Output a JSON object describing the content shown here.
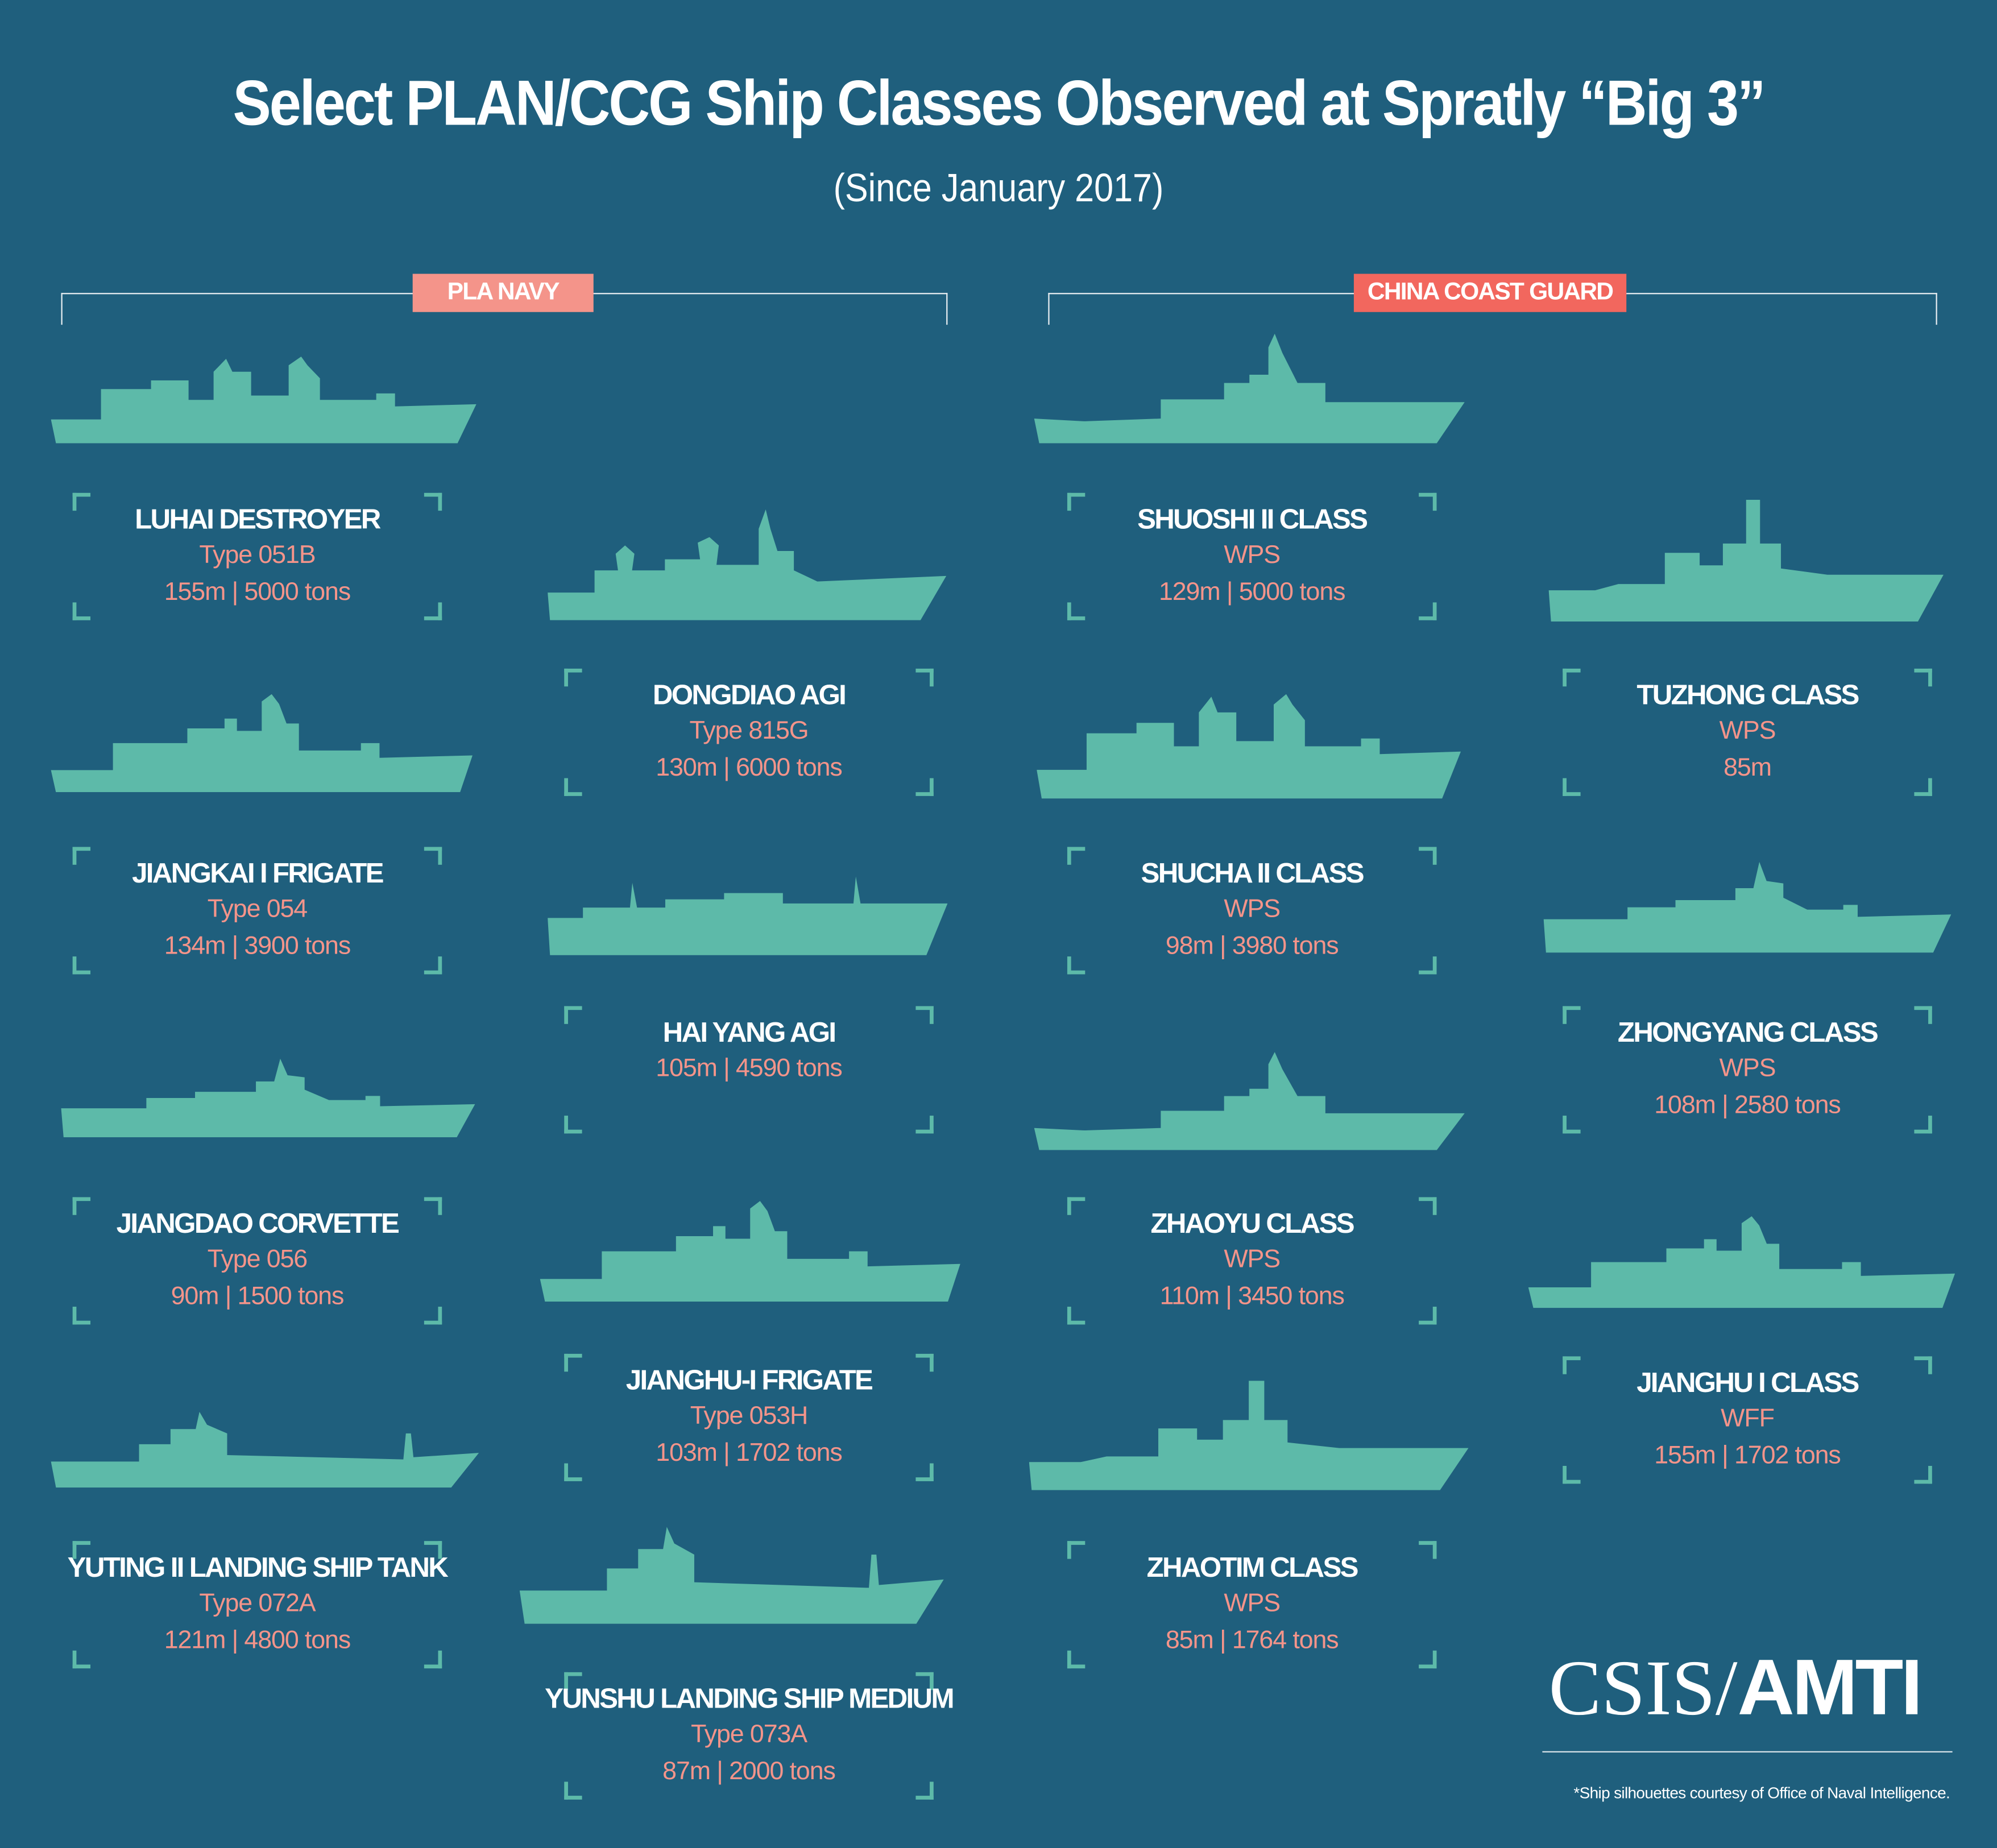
{
  "header": {
    "title": "Select PLAN/CCG Ship Classes Observed at Spratly “Big 3”",
    "subtitle": "(Since January 2017)"
  },
  "colors": {
    "background": "#1f5f7d",
    "ship": "#5dbaa9",
    "pla_badge": "#f4948a",
    "ccg_badge": "#f2675e",
    "detail_text": "#f4948a"
  },
  "groups": {
    "pla": {
      "label": "PLA NAVY"
    },
    "ccg": {
      "label": "CHINA COAST GUARD"
    }
  },
  "ships": [
    {
      "name": "LUHAI DESTROYER",
      "type": "Type 051B",
      "stats": "155m | 5000 tons",
      "icon": "destroyer-silhouette-icon"
    },
    {
      "name": "JIANGKAI I FRIGATE",
      "type": "Type 054",
      "stats": "134m | 3900 tons",
      "icon": "frigate-silhouette-icon"
    },
    {
      "name": "JIANGDAO CORVETTE",
      "type": "Type 056",
      "stats": "90m | 1500 tons",
      "icon": "corvette-silhouette-icon"
    },
    {
      "name": "YUTING II LANDING SHIP TANK",
      "type": "Type 072A",
      "stats": "121m | 4800 tons",
      "icon": "landing-ship-silhouette-icon"
    },
    {
      "name": "DONGDIAO AGI",
      "type": "Type 815G",
      "stats": "130m | 6000 tons",
      "icon": "agi-silhouette-icon"
    },
    {
      "name": "HAI YANG AGI",
      "stats": "105m | 4590 tons",
      "icon": "agi-silhouette-icon"
    },
    {
      "name": "JIANGHU-I FRIGATE",
      "type": "Type 053H",
      "stats": "103m | 1702 tons",
      "icon": "frigate-silhouette-icon"
    },
    {
      "name": "YUNSHU LANDING SHIP MEDIUM",
      "type": "Type 073A",
      "stats": "87m | 2000 tons",
      "icon": "landing-ship-silhouette-icon"
    },
    {
      "name": "SHUOSHI II CLASS",
      "type": "WPS",
      "stats": "129m | 5000 tons",
      "icon": "patrol-ship-silhouette-icon"
    },
    {
      "name": "SHUCHA II CLASS",
      "type": "WPS",
      "stats": "98m | 3980 tons",
      "icon": "patrol-ship-silhouette-icon"
    },
    {
      "name": "ZHAOYU CLASS",
      "type": "WPS",
      "stats": "110m | 3450 tons",
      "icon": "patrol-ship-silhouette-icon"
    },
    {
      "name": "ZHAOTIM CLASS",
      "type": "WPS",
      "stats": "85m | 1764 tons",
      "icon": "patrol-ship-silhouette-icon"
    },
    {
      "name": "TUZHONG CLASS",
      "type": "WPS",
      "stats": "85m",
      "icon": "tug-silhouette-icon"
    },
    {
      "name": "ZHONGYANG CLASS",
      "type": "WPS",
      "stats": "108m | 2580 tons",
      "icon": "patrol-ship-silhouette-icon"
    },
    {
      "name": "JIANGHU I CLASS",
      "type": "WFF",
      "stats": "155m | 1702 tons",
      "icon": "frigate-silhouette-icon"
    }
  ],
  "logo": {
    "text": "CSIS/AMTI"
  },
  "footnote": "*Ship silhouettes courtesy of Office of Naval Intelligence."
}
